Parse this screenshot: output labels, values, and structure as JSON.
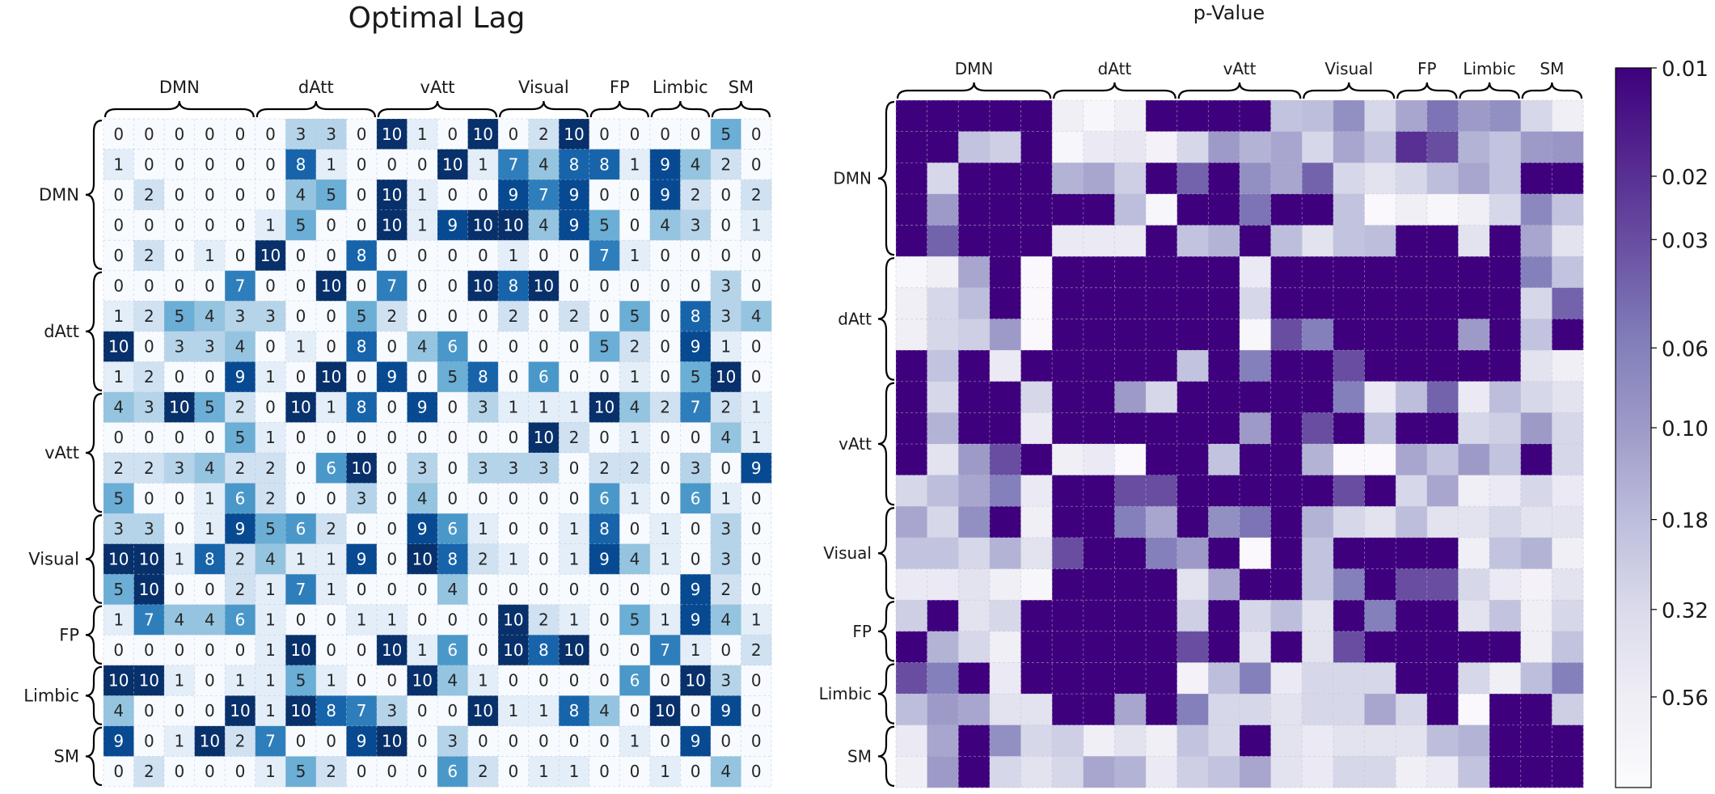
{
  "chart_data": [
    {
      "type": "heatmap",
      "title": "Optimal Lag",
      "groups": [
        {
          "name": "DMN",
          "size": 5
        },
        {
          "name": "dAtt",
          "size": 4
        },
        {
          "name": "vAtt",
          "size": 4
        },
        {
          "name": "Visual",
          "size": 3
        },
        {
          "name": "FP",
          "size": 2
        },
        {
          "name": "Limbic",
          "size": 2
        },
        {
          "name": "SM",
          "size": 2
        }
      ],
      "value_range": [
        0,
        10
      ],
      "annotated": true,
      "colormap": [
        "#f7fbff",
        "#deebf7",
        "#c6dbef",
        "#9ecae1",
        "#6baed6",
        "#4292c6",
        "#2171b5",
        "#08519c",
        "#08306b"
      ],
      "values": [
        [
          0,
          0,
          0,
          0,
          0,
          0,
          3,
          3,
          0,
          10,
          1,
          0,
          10,
          0,
          2,
          10,
          0,
          0,
          0,
          0,
          5,
          0
        ],
        [
          1,
          0,
          0,
          0,
          0,
          0,
          8,
          1,
          0,
          0,
          0,
          10,
          1,
          7,
          4,
          8,
          8,
          1,
          9,
          4,
          2,
          0
        ],
        [
          0,
          2,
          0,
          0,
          0,
          0,
          4,
          5,
          0,
          10,
          1,
          0,
          0,
          9,
          7,
          9,
          0,
          0,
          9,
          2,
          0,
          2
        ],
        [
          0,
          0,
          0,
          0,
          0,
          1,
          5,
          0,
          0,
          10,
          1,
          9,
          10,
          10,
          4,
          9,
          5,
          0,
          4,
          3,
          0,
          1
        ],
        [
          0,
          2,
          0,
          1,
          0,
          10,
          0,
          0,
          8,
          0,
          0,
          0,
          0,
          1,
          0,
          0,
          7,
          1,
          0,
          0,
          0,
          0
        ],
        [
          0,
          0,
          0,
          0,
          7,
          0,
          0,
          10,
          0,
          7,
          0,
          0,
          10,
          8,
          10,
          0,
          0,
          0,
          0,
          0,
          3,
          0
        ],
        [
          1,
          2,
          5,
          4,
          3,
          3,
          0,
          0,
          5,
          2,
          0,
          0,
          0,
          2,
          0,
          2,
          0,
          5,
          0,
          8,
          3,
          4
        ],
        [
          10,
          0,
          3,
          3,
          4,
          0,
          1,
          0,
          8,
          0,
          4,
          6,
          0,
          0,
          0,
          0,
          5,
          2,
          0,
          9,
          1,
          0
        ],
        [
          1,
          2,
          0,
          0,
          9,
          1,
          0,
          10,
          0,
          9,
          0,
          5,
          8,
          0,
          6,
          0,
          0,
          1,
          0,
          5,
          10,
          0
        ],
        [
          4,
          3,
          10,
          5,
          2,
          0,
          10,
          1,
          8,
          0,
          9,
          0,
          3,
          1,
          1,
          1,
          10,
          4,
          2,
          7,
          2,
          1
        ],
        [
          0,
          0,
          0,
          0,
          5,
          1,
          0,
          0,
          0,
          0,
          0,
          0,
          0,
          0,
          10,
          2,
          0,
          1,
          0,
          0,
          4,
          1
        ],
        [
          2,
          2,
          3,
          4,
          2,
          2,
          0,
          6,
          10,
          0,
          3,
          0,
          3,
          3,
          3,
          0,
          2,
          2,
          0,
          3,
          0,
          9
        ],
        [
          5,
          0,
          0,
          1,
          6,
          2,
          0,
          0,
          3,
          0,
          4,
          0,
          0,
          0,
          0,
          0,
          6,
          1,
          0,
          6,
          1,
          0
        ],
        [
          3,
          3,
          0,
          1,
          9,
          5,
          6,
          2,
          0,
          0,
          9,
          6,
          1,
          0,
          0,
          1,
          8,
          0,
          1,
          0,
          3,
          0
        ],
        [
          10,
          10,
          1,
          8,
          2,
          4,
          1,
          1,
          9,
          0,
          10,
          8,
          2,
          1,
          0,
          1,
          9,
          4,
          1,
          0,
          3,
          0
        ],
        [
          5,
          10,
          0,
          0,
          2,
          1,
          7,
          1,
          0,
          0,
          0,
          4,
          0,
          0,
          0,
          0,
          0,
          0,
          0,
          9,
          2,
          0
        ],
        [
          1,
          7,
          4,
          4,
          6,
          1,
          0,
          0,
          1,
          1,
          0,
          0,
          0,
          10,
          2,
          1,
          0,
          5,
          1,
          9,
          4,
          1
        ],
        [
          0,
          0,
          0,
          0,
          0,
          1,
          10,
          0,
          0,
          10,
          1,
          6,
          0,
          10,
          8,
          10,
          0,
          0,
          7,
          1,
          0,
          2
        ],
        [
          10,
          10,
          1,
          0,
          1,
          1,
          5,
          1,
          0,
          0,
          10,
          4,
          1,
          0,
          0,
          0,
          0,
          6,
          0,
          10,
          3,
          0
        ],
        [
          4,
          0,
          0,
          0,
          10,
          1,
          10,
          8,
          7,
          3,
          0,
          0,
          10,
          1,
          1,
          8,
          4,
          0,
          10,
          0,
          9,
          0
        ],
        [
          9,
          0,
          1,
          10,
          2,
          7,
          0,
          0,
          9,
          10,
          0,
          3,
          0,
          0,
          0,
          0,
          0,
          1,
          0,
          9,
          0,
          0
        ],
        [
          0,
          2,
          0,
          0,
          0,
          1,
          5,
          2,
          0,
          0,
          0,
          6,
          2,
          0,
          1,
          1,
          0,
          0,
          1,
          0,
          4,
          0
        ]
      ]
    },
    {
      "type": "heatmap",
      "title": "p-Value",
      "groups": [
        {
          "name": "DMN",
          "size": 5
        },
        {
          "name": "dAtt",
          "size": 4
        },
        {
          "name": "vAtt",
          "size": 4
        },
        {
          "name": "Visual",
          "size": 3
        },
        {
          "name": "FP",
          "size": 2
        },
        {
          "name": "Limbic",
          "size": 2
        },
        {
          "name": "SM",
          "size": 2
        }
      ],
      "scale": "log",
      "colormap": [
        "#fcfbfd",
        "#efedf5",
        "#dadaeb",
        "#bcbddc",
        "#9e9ac8",
        "#807dba",
        "#6a51a3",
        "#54278f",
        "#3f007d"
      ],
      "colorbar": {
        "ticks": [
          "0.01",
          "0.02",
          "0.03",
          "0.06",
          "0.10",
          "0.18",
          "0.32",
          "0.56"
        ],
        "tick_values": [
          0.01,
          0.02,
          0.03,
          0.06,
          0.1,
          0.18,
          0.32,
          0.56
        ],
        "range": [
          0.01,
          1.0
        ]
      },
      "values": [
        [
          0.01,
          0.01,
          0.01,
          0.01,
          0.01,
          0.6,
          0.8,
          0.6,
          0.01,
          0.01,
          0.01,
          0.01,
          0.2,
          0.18,
          0.08,
          0.3,
          0.12,
          0.05,
          0.1,
          0.08,
          0.3,
          0.6
        ],
        [
          0.01,
          0.01,
          0.2,
          0.25,
          0.01,
          0.8,
          0.5,
          0.45,
          0.7,
          0.3,
          0.1,
          0.15,
          0.12,
          0.3,
          0.12,
          0.2,
          0.02,
          0.03,
          0.15,
          0.2,
          0.1,
          0.09
        ],
        [
          0.01,
          0.3,
          0.01,
          0.01,
          0.01,
          0.15,
          0.12,
          0.25,
          0.01,
          0.04,
          0.01,
          0.08,
          0.12,
          0.04,
          0.3,
          0.4,
          0.3,
          0.18,
          0.12,
          0.2,
          0.01,
          0.01
        ],
        [
          0.01,
          0.1,
          0.01,
          0.01,
          0.01,
          0.01,
          0.01,
          0.18,
          0.8,
          0.01,
          0.01,
          0.05,
          0.01,
          0.01,
          0.2,
          0.9,
          0.6,
          0.8,
          0.6,
          0.3,
          0.07,
          0.2
        ],
        [
          0.01,
          0.04,
          0.01,
          0.01,
          0.01,
          0.5,
          0.5,
          0.5,
          0.01,
          0.2,
          0.15,
          0.01,
          0.18,
          0.4,
          0.2,
          0.18,
          0.01,
          0.01,
          0.4,
          0.01,
          0.12,
          0.4
        ],
        [
          0.8,
          0.6,
          0.12,
          0.01,
          0.9,
          0.01,
          0.01,
          0.01,
          0.01,
          0.01,
          0.01,
          0.5,
          0.01,
          0.01,
          0.01,
          0.01,
          0.01,
          0.01,
          0.01,
          0.01,
          0.06,
          0.2
        ],
        [
          0.6,
          0.3,
          0.18,
          0.01,
          0.9,
          0.01,
          0.01,
          0.01,
          0.01,
          0.01,
          0.01,
          0.3,
          0.01,
          0.01,
          0.01,
          0.01,
          0.01,
          0.01,
          0.01,
          0.01,
          0.3,
          0.04
        ],
        [
          0.6,
          0.3,
          0.25,
          0.1,
          0.9,
          0.01,
          0.01,
          0.01,
          0.01,
          0.01,
          0.01,
          0.8,
          0.03,
          0.06,
          0.01,
          0.01,
          0.01,
          0.01,
          0.1,
          0.01,
          0.2,
          0.01
        ],
        [
          0.01,
          0.2,
          0.01,
          0.5,
          0.01,
          0.01,
          0.01,
          0.01,
          0.01,
          0.2,
          0.01,
          0.06,
          0.01,
          0.01,
          0.03,
          0.01,
          0.01,
          0.01,
          0.01,
          0.01,
          0.4,
          0.6
        ],
        [
          0.01,
          0.3,
          0.01,
          0.01,
          0.3,
          0.01,
          0.01,
          0.1,
          0.3,
          0.01,
          0.01,
          0.01,
          0.01,
          0.01,
          0.06,
          0.5,
          0.18,
          0.04,
          0.5,
          0.18,
          0.3,
          0.4
        ],
        [
          0.01,
          0.15,
          0.01,
          0.01,
          0.5,
          0.01,
          0.01,
          0.01,
          0.01,
          0.01,
          0.01,
          0.1,
          0.01,
          0.03,
          0.01,
          0.18,
          0.01,
          0.01,
          0.3,
          0.25,
          0.1,
          0.3
        ],
        [
          0.01,
          0.4,
          0.1,
          0.03,
          0.01,
          0.6,
          0.5,
          0.9,
          0.01,
          0.01,
          0.2,
          0.01,
          0.01,
          0.15,
          0.9,
          0.9,
          0.12,
          0.2,
          0.1,
          0.2,
          0.01,
          0.3
        ],
        [
          0.3,
          0.18,
          0.12,
          0.06,
          0.5,
          0.01,
          0.01,
          0.03,
          0.03,
          0.01,
          0.01,
          0.01,
          0.01,
          0.01,
          0.03,
          0.01,
          0.3,
          0.12,
          0.6,
          0.5,
          0.3,
          0.5
        ],
        [
          0.12,
          0.3,
          0.08,
          0.01,
          0.6,
          0.01,
          0.01,
          0.06,
          0.12,
          0.01,
          0.08,
          0.05,
          0.01,
          0.15,
          0.3,
          0.4,
          0.18,
          0.4,
          0.4,
          0.3,
          0.4,
          0.4
        ],
        [
          0.2,
          0.2,
          0.3,
          0.15,
          0.4,
          0.03,
          0.01,
          0.01,
          0.06,
          0.1,
          0.01,
          0.9,
          0.01,
          0.2,
          0.01,
          0.01,
          0.01,
          0.01,
          0.6,
          0.2,
          0.15,
          0.6
        ],
        [
          0.5,
          0.5,
          0.4,
          0.6,
          0.8,
          0.01,
          0.01,
          0.01,
          0.01,
          0.4,
          0.12,
          0.01,
          0.01,
          0.2,
          0.06,
          0.01,
          0.03,
          0.03,
          0.3,
          0.5,
          0.7,
          0.4
        ],
        [
          0.25,
          0.01,
          0.4,
          0.3,
          0.01,
          0.01,
          0.01,
          0.01,
          0.01,
          0.25,
          0.01,
          0.3,
          0.18,
          0.4,
          0.01,
          0.06,
          0.01,
          0.01,
          0.4,
          0.2,
          0.6,
          0.3
        ],
        [
          0.01,
          0.15,
          0.3,
          0.6,
          0.01,
          0.01,
          0.01,
          0.01,
          0.01,
          0.03,
          0.01,
          0.4,
          0.01,
          0.4,
          0.03,
          0.01,
          0.01,
          0.01,
          0.01,
          0.01,
          0.6,
          0.2
        ],
        [
          0.03,
          0.06,
          0.01,
          0.5,
          0.01,
          0.01,
          0.01,
          0.01,
          0.01,
          0.7,
          0.18,
          0.06,
          0.5,
          0.3,
          0.3,
          0.3,
          0.01,
          0.01,
          0.3,
          0.6,
          0.18,
          0.06
        ],
        [
          0.18,
          0.1,
          0.12,
          0.4,
          0.4,
          0.01,
          0.01,
          0.12,
          0.01,
          0.06,
          0.3,
          0.3,
          0.4,
          0.3,
          0.3,
          0.12,
          0.3,
          0.01,
          0.9,
          0.01,
          0.01,
          0.25
        ],
        [
          0.5,
          0.12,
          0.01,
          0.08,
          0.3,
          0.25,
          0.6,
          0.4,
          0.6,
          0.2,
          0.3,
          0.01,
          0.4,
          0.5,
          0.4,
          0.4,
          0.4,
          0.18,
          0.15,
          0.01,
          0.01,
          0.01
        ],
        [
          0.6,
          0.1,
          0.01,
          0.3,
          0.4,
          0.3,
          0.12,
          0.15,
          0.5,
          0.25,
          0.2,
          0.12,
          0.4,
          0.5,
          0.3,
          0.3,
          0.6,
          0.5,
          0.2,
          0.01,
          0.01,
          0.01
        ]
      ]
    }
  ]
}
